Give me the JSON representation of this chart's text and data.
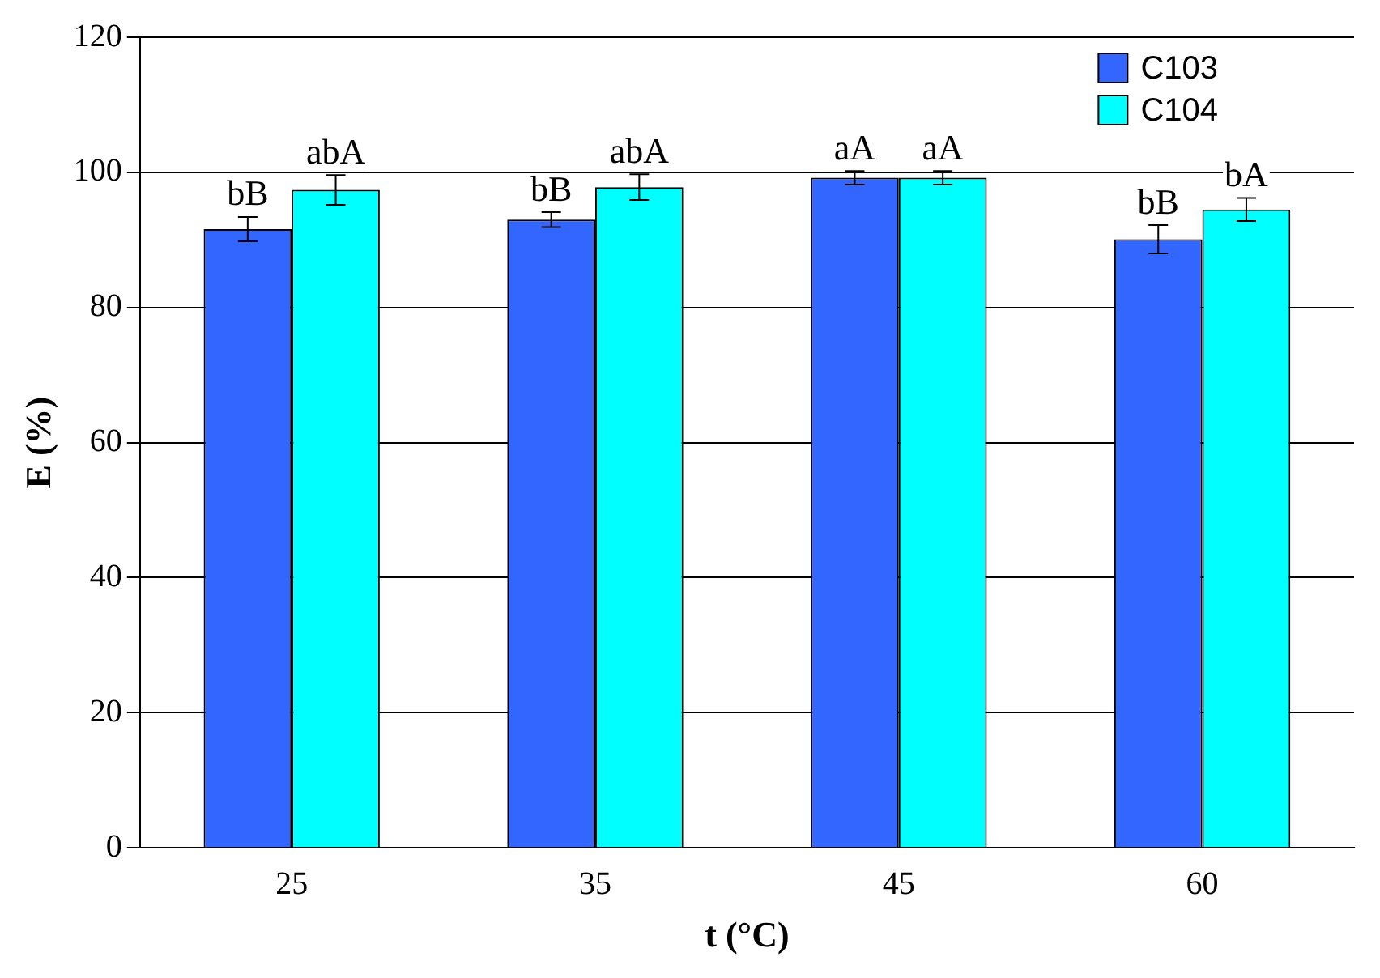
{
  "chart_data": {
    "type": "bar",
    "xlabel": "t (°C)",
    "ylabel": "E (%)",
    "categories": [
      "25",
      "35",
      "45",
      "60"
    ],
    "series": [
      {
        "name": "C103",
        "color": "#3366ff",
        "values": [
          91.6,
          93.0,
          99.2,
          90.1
        ],
        "errors": [
          1.8,
          1.1,
          1.0,
          2.1
        ]
      },
      {
        "name": "C104",
        "color": "#00ffff",
        "values": [
          97.4,
          97.8,
          99.2,
          94.5
        ],
        "errors": [
          2.2,
          1.9,
          1.0,
          1.7
        ]
      }
    ],
    "ylim": [
      0,
      120
    ],
    "yticks": [
      0,
      20,
      40,
      60,
      80,
      100,
      120
    ],
    "grid": "y",
    "legend": "top right",
    "annotations": [
      {
        "text": "bB",
        "x": "25",
        "y": 91.6
      },
      {
        "text": "abA",
        "x": "25",
        "y": 97.4
      },
      {
        "text": "bB",
        "x": "35",
        "y": 93.0
      },
      {
        "text": "abA",
        "x": "35",
        "y": 97.8
      },
      {
        "text": "aA",
        "x": "45",
        "y": 99.2
      },
      {
        "text": "aA",
        "x": "45",
        "y": 99.2
      },
      {
        "text": "bB",
        "x": "60",
        "y": 90.1
      },
      {
        "text": "bA",
        "x": "60",
        "y": 94.5
      }
    ]
  }
}
